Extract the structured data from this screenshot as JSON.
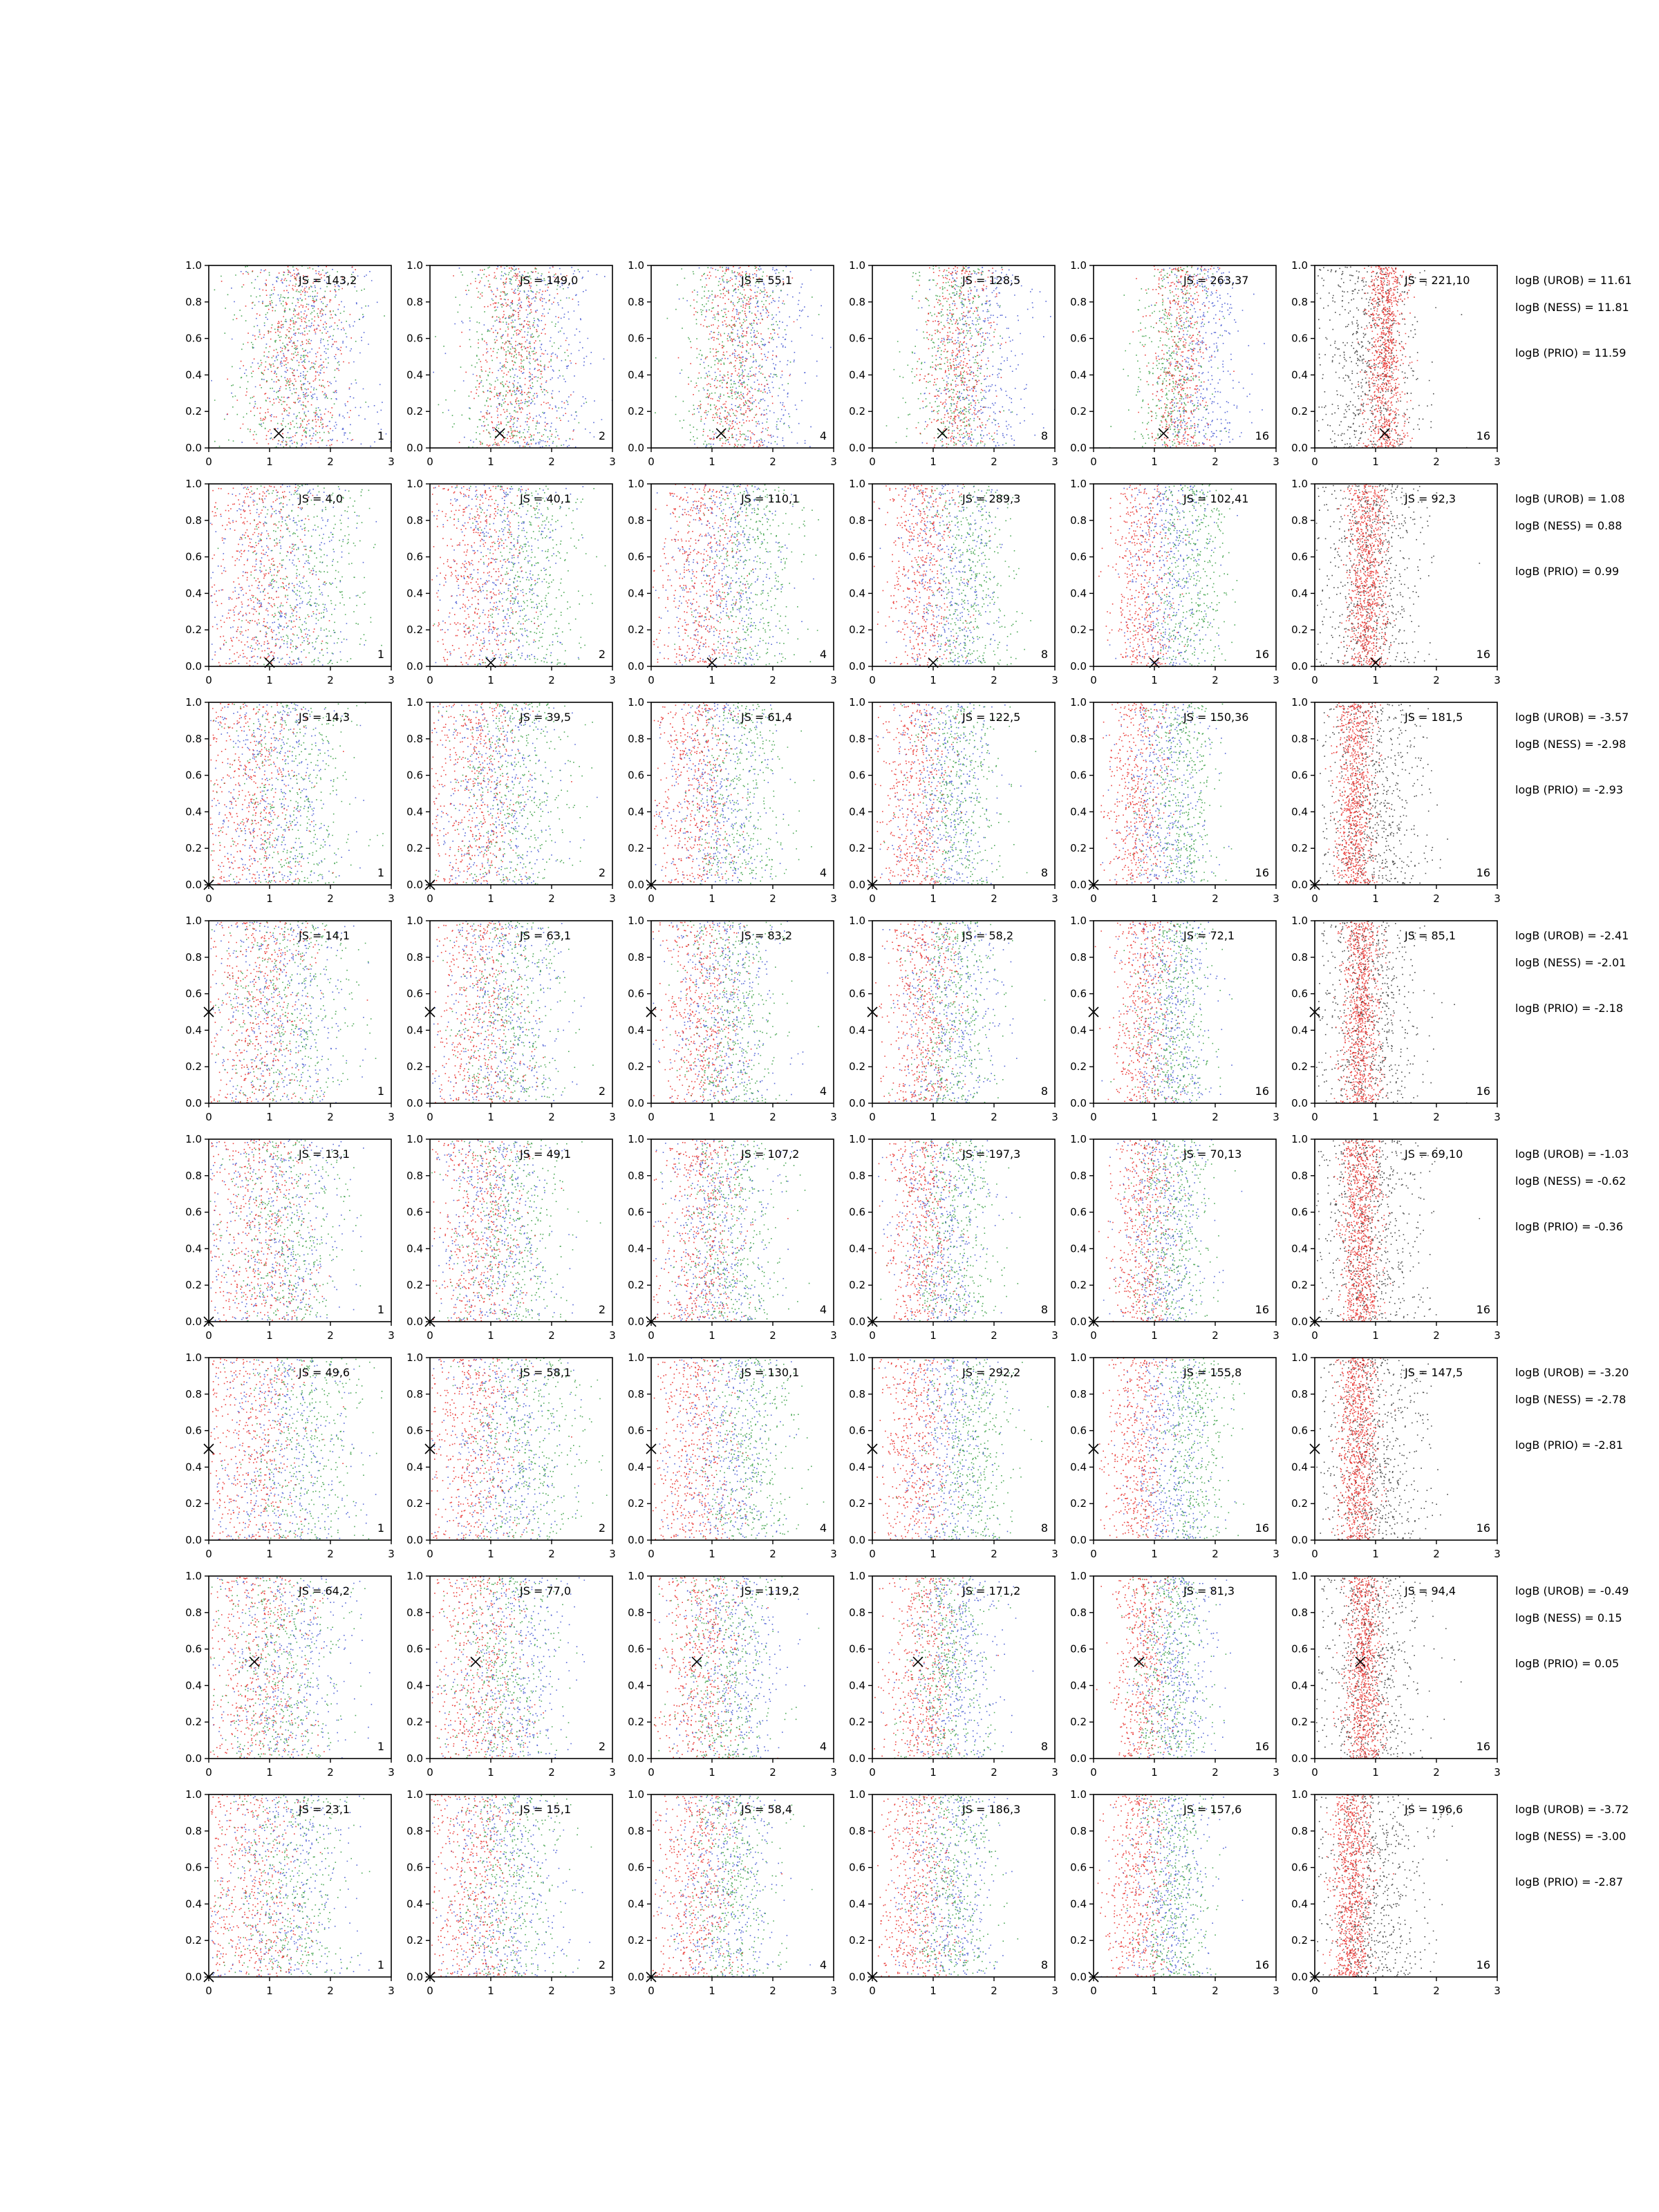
{
  "chart_data": {
    "type": "scatter",
    "layout": "grid of 8 rows x 6 columns",
    "xlim": [
      0,
      3
    ],
    "ylim": [
      0,
      1
    ],
    "xticks": [
      "0",
      "1",
      "2",
      "3"
    ],
    "yticks": [
      "0.0",
      "0.2",
      "0.4",
      "0.6",
      "0.8",
      "1.0"
    ],
    "column_labels": [
      "1",
      "2",
      "4",
      "8",
      "16",
      "16"
    ],
    "series_colors": {
      "red": "#e8221f",
      "blue": "#3a4fd0",
      "green": "#2e9a3a",
      "black": "#2b2b2b"
    },
    "rows": [
      {
        "js": [
          "JS = 143,2",
          "JS = 149,0",
          "JS = 55,1",
          "JS = 128,5",
          "JS = 263,37",
          "JS = 221,10"
        ],
        "marker": [
          1.15,
          0.08
        ],
        "centers": {
          "red": 1.4,
          "green": 1.3,
          "blue": 1.7,
          "black": 0.9,
          "last_red": 1.15
        },
        "logB": [
          "logB (UROB) = 11.61",
          "logB (NESS) = 11.81",
          "logB (PRIO) = 11.59"
        ]
      },
      {
        "js": [
          "JS = 4,0",
          "JS = 40,1",
          "JS = 110,1",
          "JS = 289,3",
          "JS = 102,41",
          "JS = 92,3"
        ],
        "marker": [
          1.0,
          0.02
        ],
        "centers": {
          "red": 0.8,
          "green": 1.6,
          "blue": 1.2,
          "black": 0.9,
          "last_red": 0.85
        },
        "logB": [
          "logB (UROB) = 1.08",
          "logB (NESS) = 0.88",
          "logB (PRIO) = 0.99"
        ]
      },
      {
        "js": [
          "JS = 14,3",
          "JS = 39,5",
          "JS = 61,4",
          "JS = 122,5",
          "JS = 150,36",
          "JS = 181,5"
        ],
        "marker": [
          0.0,
          0.0
        ],
        "centers": {
          "red": 0.7,
          "green": 1.4,
          "blue": 1.1,
          "black": 1.0,
          "last_red": 0.65
        },
        "logB": [
          "logB (UROB) = -3.57",
          "logB (NESS) = -2.98",
          "logB (PRIO) = -2.93"
        ]
      },
      {
        "js": [
          "JS = 14,1",
          "JS = 63,1",
          "JS = 83,2",
          "JS = 58,2",
          "JS = 72,1",
          "JS = 85,1"
        ],
        "marker": [
          0.0,
          0.5
        ],
        "centers": {
          "red": 0.8,
          "green": 1.3,
          "blue": 1.2,
          "black": 0.9,
          "last_red": 0.75
        },
        "logB": [
          "logB (UROB) = -2.41",
          "logB (NESS) = -2.01",
          "logB (PRIO) = -2.18"
        ]
      },
      {
        "js": [
          "JS = 13,1",
          "JS = 49,1",
          "JS = 107,2",
          "JS = 197,3",
          "JS = 70,13",
          "JS = 69,10"
        ],
        "marker": [
          0.0,
          0.0
        ],
        "centers": {
          "red": 0.8,
          "green": 1.3,
          "blue": 1.1,
          "black": 0.9,
          "last_red": 0.75
        },
        "logB": [
          "logB (UROB) = -1.03",
          "logB (NESS) = -0.62",
          "logB (PRIO) = -0.36"
        ]
      },
      {
        "js": [
          "JS = 49,6",
          "JS = 58,1",
          "JS = 130,1",
          "JS = 292,2",
          "JS = 155,8",
          "JS = 147,5"
        ],
        "marker": [
          0.0,
          0.5
        ],
        "centers": {
          "red": 0.7,
          "green": 1.6,
          "blue": 1.2,
          "black": 1.0,
          "last_red": 0.7
        },
        "logB": [
          "logB (UROB) = -3.20",
          "logB (NESS) = -2.78",
          "logB (PRIO) = -2.81"
        ]
      },
      {
        "js": [
          "JS = 64,2",
          "JS = 77,0",
          "JS = 119,2",
          "JS = 171,2",
          "JS = 81,3",
          "JS = 94,4"
        ],
        "marker": [
          0.75,
          0.53
        ],
        "centers": {
          "red": 0.8,
          "green": 1.2,
          "blue": 1.3,
          "black": 0.9,
          "last_red": 0.8
        },
        "logB": [
          "logB (UROB) = -0.49",
          "logB (NESS) = 0.15",
          "logB (PRIO) = 0.05"
        ]
      },
      {
        "js": [
          "JS = 23,1",
          "JS = 15,1",
          "JS = 58,4",
          "JS = 186,3",
          "JS = 157,6",
          "JS = 196,6"
        ],
        "marker": [
          0.0,
          0.0
        ],
        "centers": {
          "red": 0.7,
          "green": 1.3,
          "blue": 1.2,
          "black": 1.0,
          "last_red": 0.6
        },
        "logB": [
          "logB (UROB) = -3.72",
          "logB (NESS) = -3.00",
          "logB (PRIO) = -2.87"
        ]
      }
    ]
  }
}
